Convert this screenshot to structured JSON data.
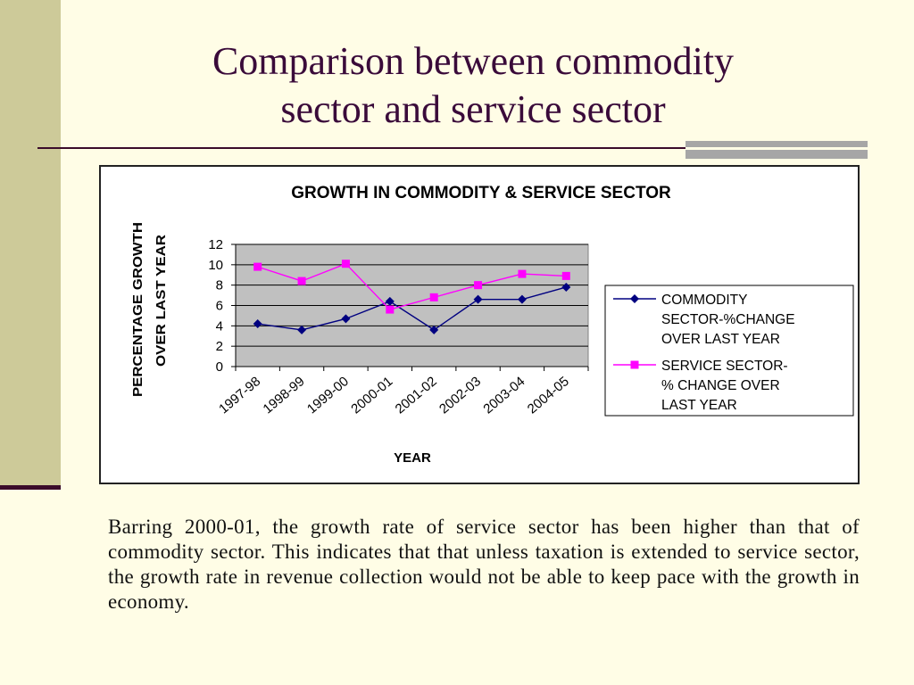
{
  "slide": {
    "title_line1": "Comparison between commodity",
    "title_line2": "sector and service sector",
    "caption": "Barring 2000-01, the growth rate of service sector has been higher than that of commodity sector. This indicates that that unless taxation is extended to service sector, the growth rate in revenue collection would not be able to keep pace with the growth in economy."
  },
  "colors": {
    "background": "#fffde6",
    "band": "#cdca99",
    "title": "#3a0b3a",
    "plot_area": "#c0c0c0",
    "commodity": "#000080",
    "service": "#ff00ff"
  },
  "chart_data": {
    "type": "line",
    "title": "GROWTH IN COMMODITY & SERVICE SECTOR",
    "xlabel": "YEAR",
    "ylabel_line1": "PERCENTAGE GROWTH",
    "ylabel_line2": "OVER LAST YEAR",
    "ylim": [
      0,
      12
    ],
    "yticks": [
      "0",
      "2",
      "4",
      "6",
      "8",
      "10",
      "12"
    ],
    "grid": true,
    "legend_position": "right",
    "categories": [
      "1997-98",
      "1998-99",
      "1999-00",
      "2000-01",
      "2001-02",
      "2002-03",
      "2003-04",
      "2004-05"
    ],
    "series": [
      {
        "name_lines": [
          "COMMODITY",
          "SECTOR-%CHANGE",
          "OVER LAST YEAR"
        ],
        "marker": "diamond",
        "values": [
          4.2,
          3.6,
          4.7,
          6.4,
          3.6,
          6.6,
          6.6,
          7.8
        ]
      },
      {
        "name_lines": [
          "SERVICE SECTOR-",
          "% CHANGE OVER",
          "LAST YEAR"
        ],
        "marker": "square",
        "values": [
          9.8,
          8.4,
          10.1,
          5.6,
          6.8,
          8.0,
          9.1,
          8.9
        ]
      }
    ]
  }
}
